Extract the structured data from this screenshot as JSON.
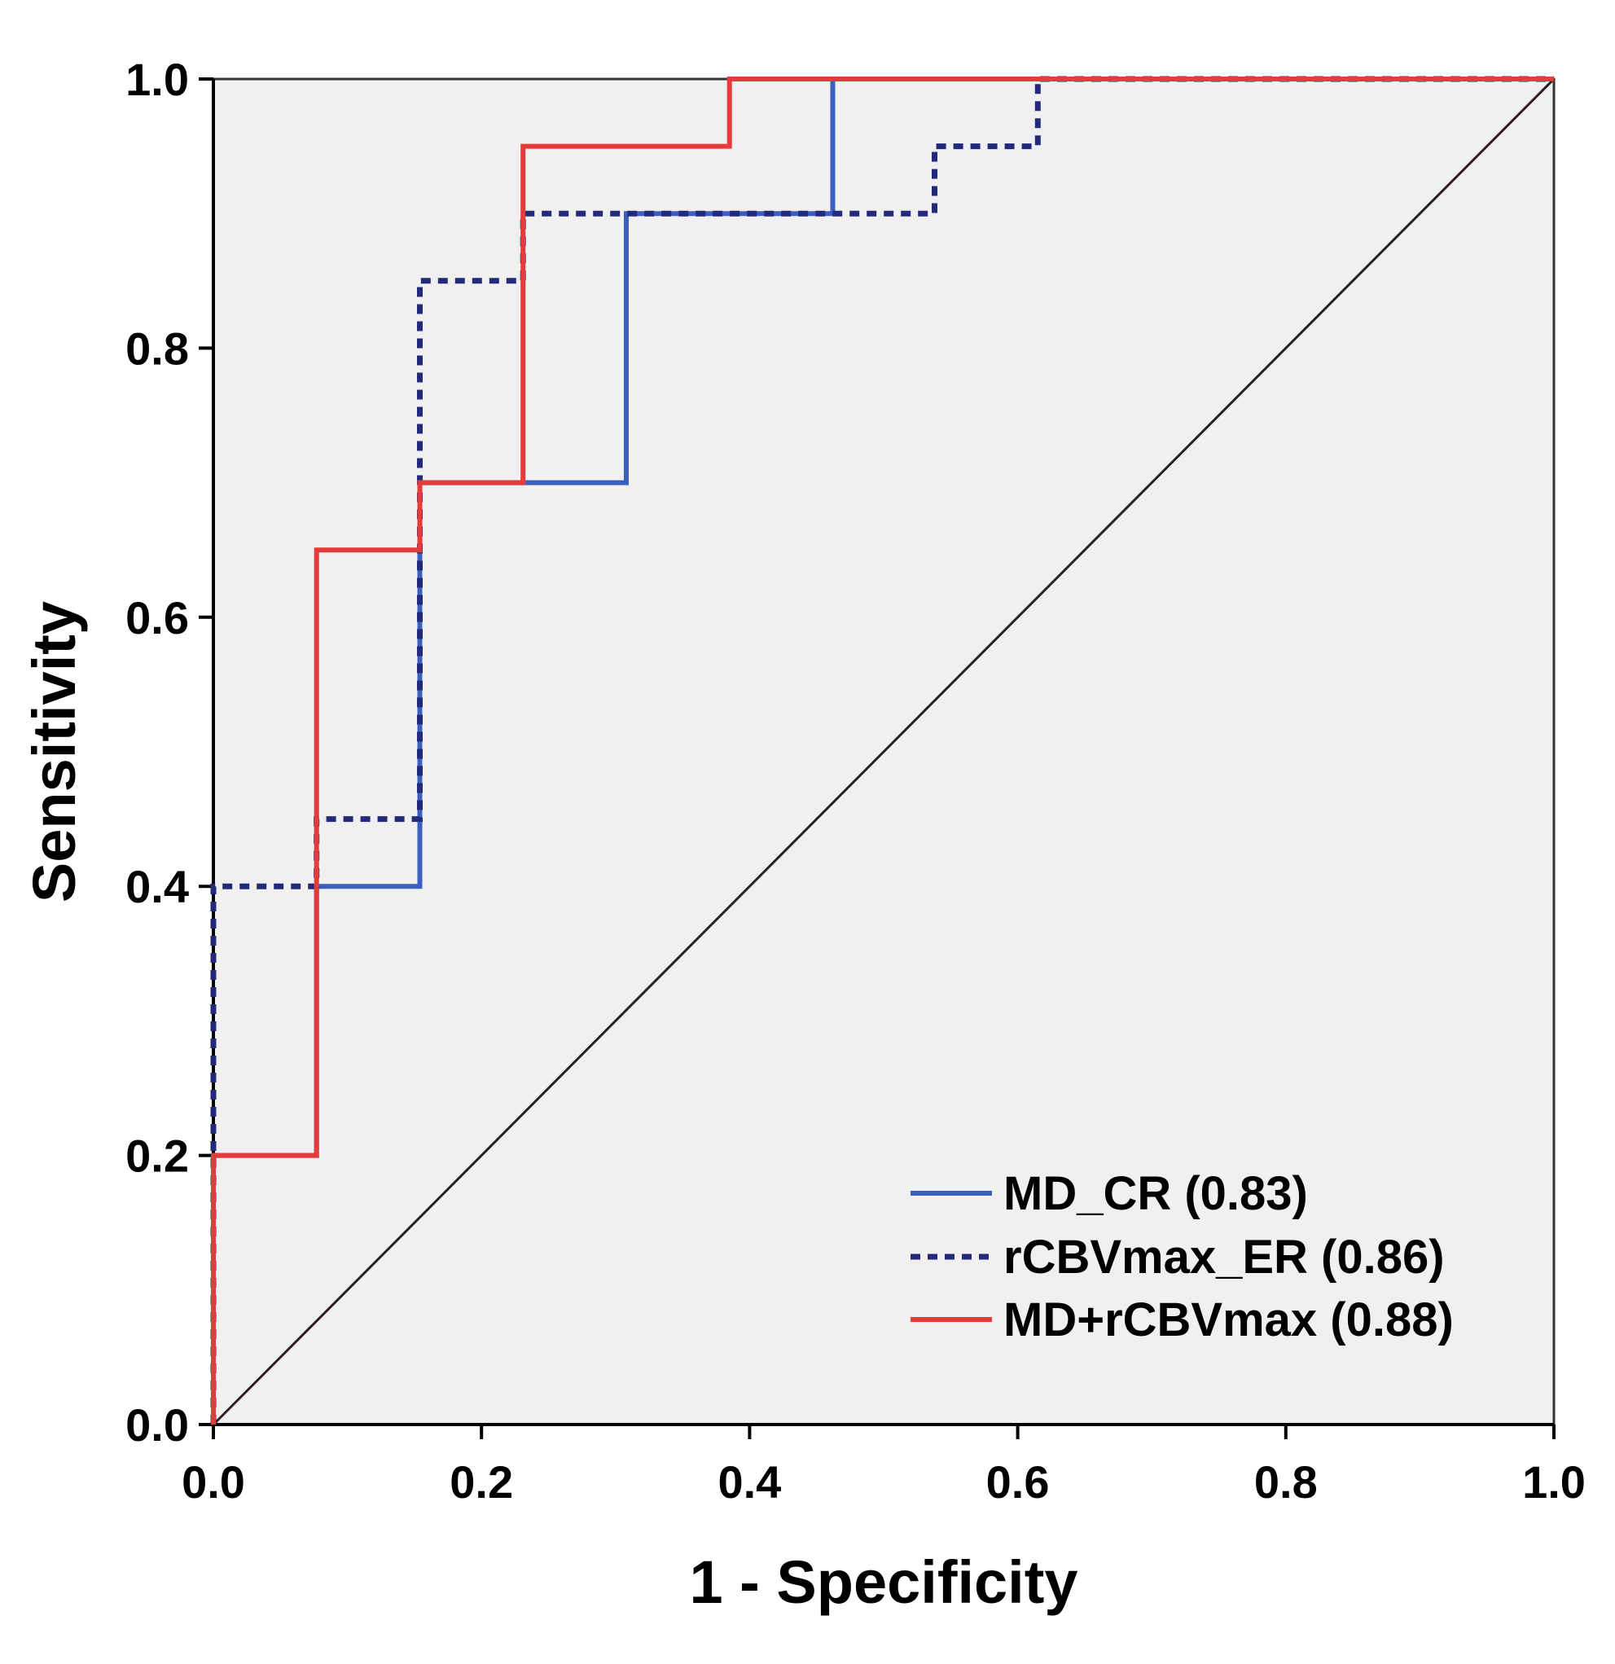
{
  "chart_data": {
    "type": "line",
    "title": "",
    "xlabel": "1 - Specificity",
    "ylabel": "Sensitivity",
    "xlim": [
      0,
      1
    ],
    "ylim": [
      0,
      1
    ],
    "x_ticks": [
      "0.0",
      "0.2",
      "0.4",
      "0.6",
      "0.8",
      "1.0"
    ],
    "y_ticks": [
      "0.0",
      "0.2",
      "0.4",
      "0.6",
      "0.8",
      "1.0"
    ],
    "x_tick_values": [
      0,
      0.2,
      0.4,
      0.6,
      0.8,
      1.0
    ],
    "y_tick_values": [
      0,
      0.2,
      0.4,
      0.6,
      0.8,
      1.0
    ],
    "grid": false,
    "legend_position": "bottom-right",
    "plot_background": "#f0f0f0",
    "reference_diagonal": {
      "from": [
        0,
        0
      ],
      "to": [
        1,
        1
      ],
      "color": "#2e1f1f"
    },
    "series": [
      {
        "name": "MD_CR (0.83)",
        "color": "#3b5fbf",
        "style": "solid",
        "points": [
          [
            0,
            0
          ],
          [
            0,
            0.2
          ],
          [
            0.077,
            0.2
          ],
          [
            0.077,
            0.4
          ],
          [
            0.154,
            0.4
          ],
          [
            0.154,
            0.7
          ],
          [
            0.308,
            0.7
          ],
          [
            0.308,
            0.9
          ],
          [
            0.462,
            0.9
          ],
          [
            0.462,
            1.0
          ],
          [
            1.0,
            1.0
          ]
        ]
      },
      {
        "name": "rCBVmax_ER (0.86)",
        "color": "#232a7a",
        "style": "dotted",
        "points": [
          [
            0,
            0
          ],
          [
            0,
            0.4
          ],
          [
            0.077,
            0.4
          ],
          [
            0.077,
            0.45
          ],
          [
            0.154,
            0.45
          ],
          [
            0.154,
            0.85
          ],
          [
            0.231,
            0.85
          ],
          [
            0.231,
            0.9
          ],
          [
            0.538,
            0.9
          ],
          [
            0.538,
            0.95
          ],
          [
            0.615,
            0.95
          ],
          [
            0.615,
            1.0
          ],
          [
            1.0,
            1.0
          ]
        ]
      },
      {
        "name": "MD+rCBVmax (0.88)",
        "color": "#e53b3b",
        "style": "solid",
        "points": [
          [
            0,
            0
          ],
          [
            0,
            0.2
          ],
          [
            0.077,
            0.2
          ],
          [
            0.077,
            0.65
          ],
          [
            0.154,
            0.65
          ],
          [
            0.154,
            0.7
          ],
          [
            0.231,
            0.7
          ],
          [
            0.231,
            0.95
          ],
          [
            0.385,
            0.95
          ],
          [
            0.385,
            1.0
          ],
          [
            1.0,
            1.0
          ]
        ]
      }
    ]
  }
}
